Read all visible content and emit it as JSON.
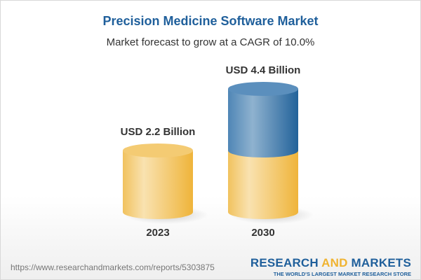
{
  "title": "Precision Medicine Software Market",
  "subtitle": "Market forecast to grow at a CAGR of 10.0%",
  "chart_data": {
    "type": "bar",
    "style": "3d-cylinder",
    "categories": [
      "2023",
      "2030"
    ],
    "values": [
      2.2,
      4.4
    ],
    "data_labels": [
      "USD 2.2 Billion",
      "USD 4.4 Billion"
    ],
    "unit": "USD Billion",
    "colors": {
      "base": "#f2c15a",
      "growth": "#3f7db0"
    }
  },
  "footer": {
    "url": "https://www.researchandmarkets.com/reports/5303875",
    "logo_part1": "RESEARCH ",
    "logo_part2": "AND",
    "logo_part3": " MARKETS",
    "tagline": "THE WORLD'S LARGEST MARKET RESEARCH STORE"
  }
}
